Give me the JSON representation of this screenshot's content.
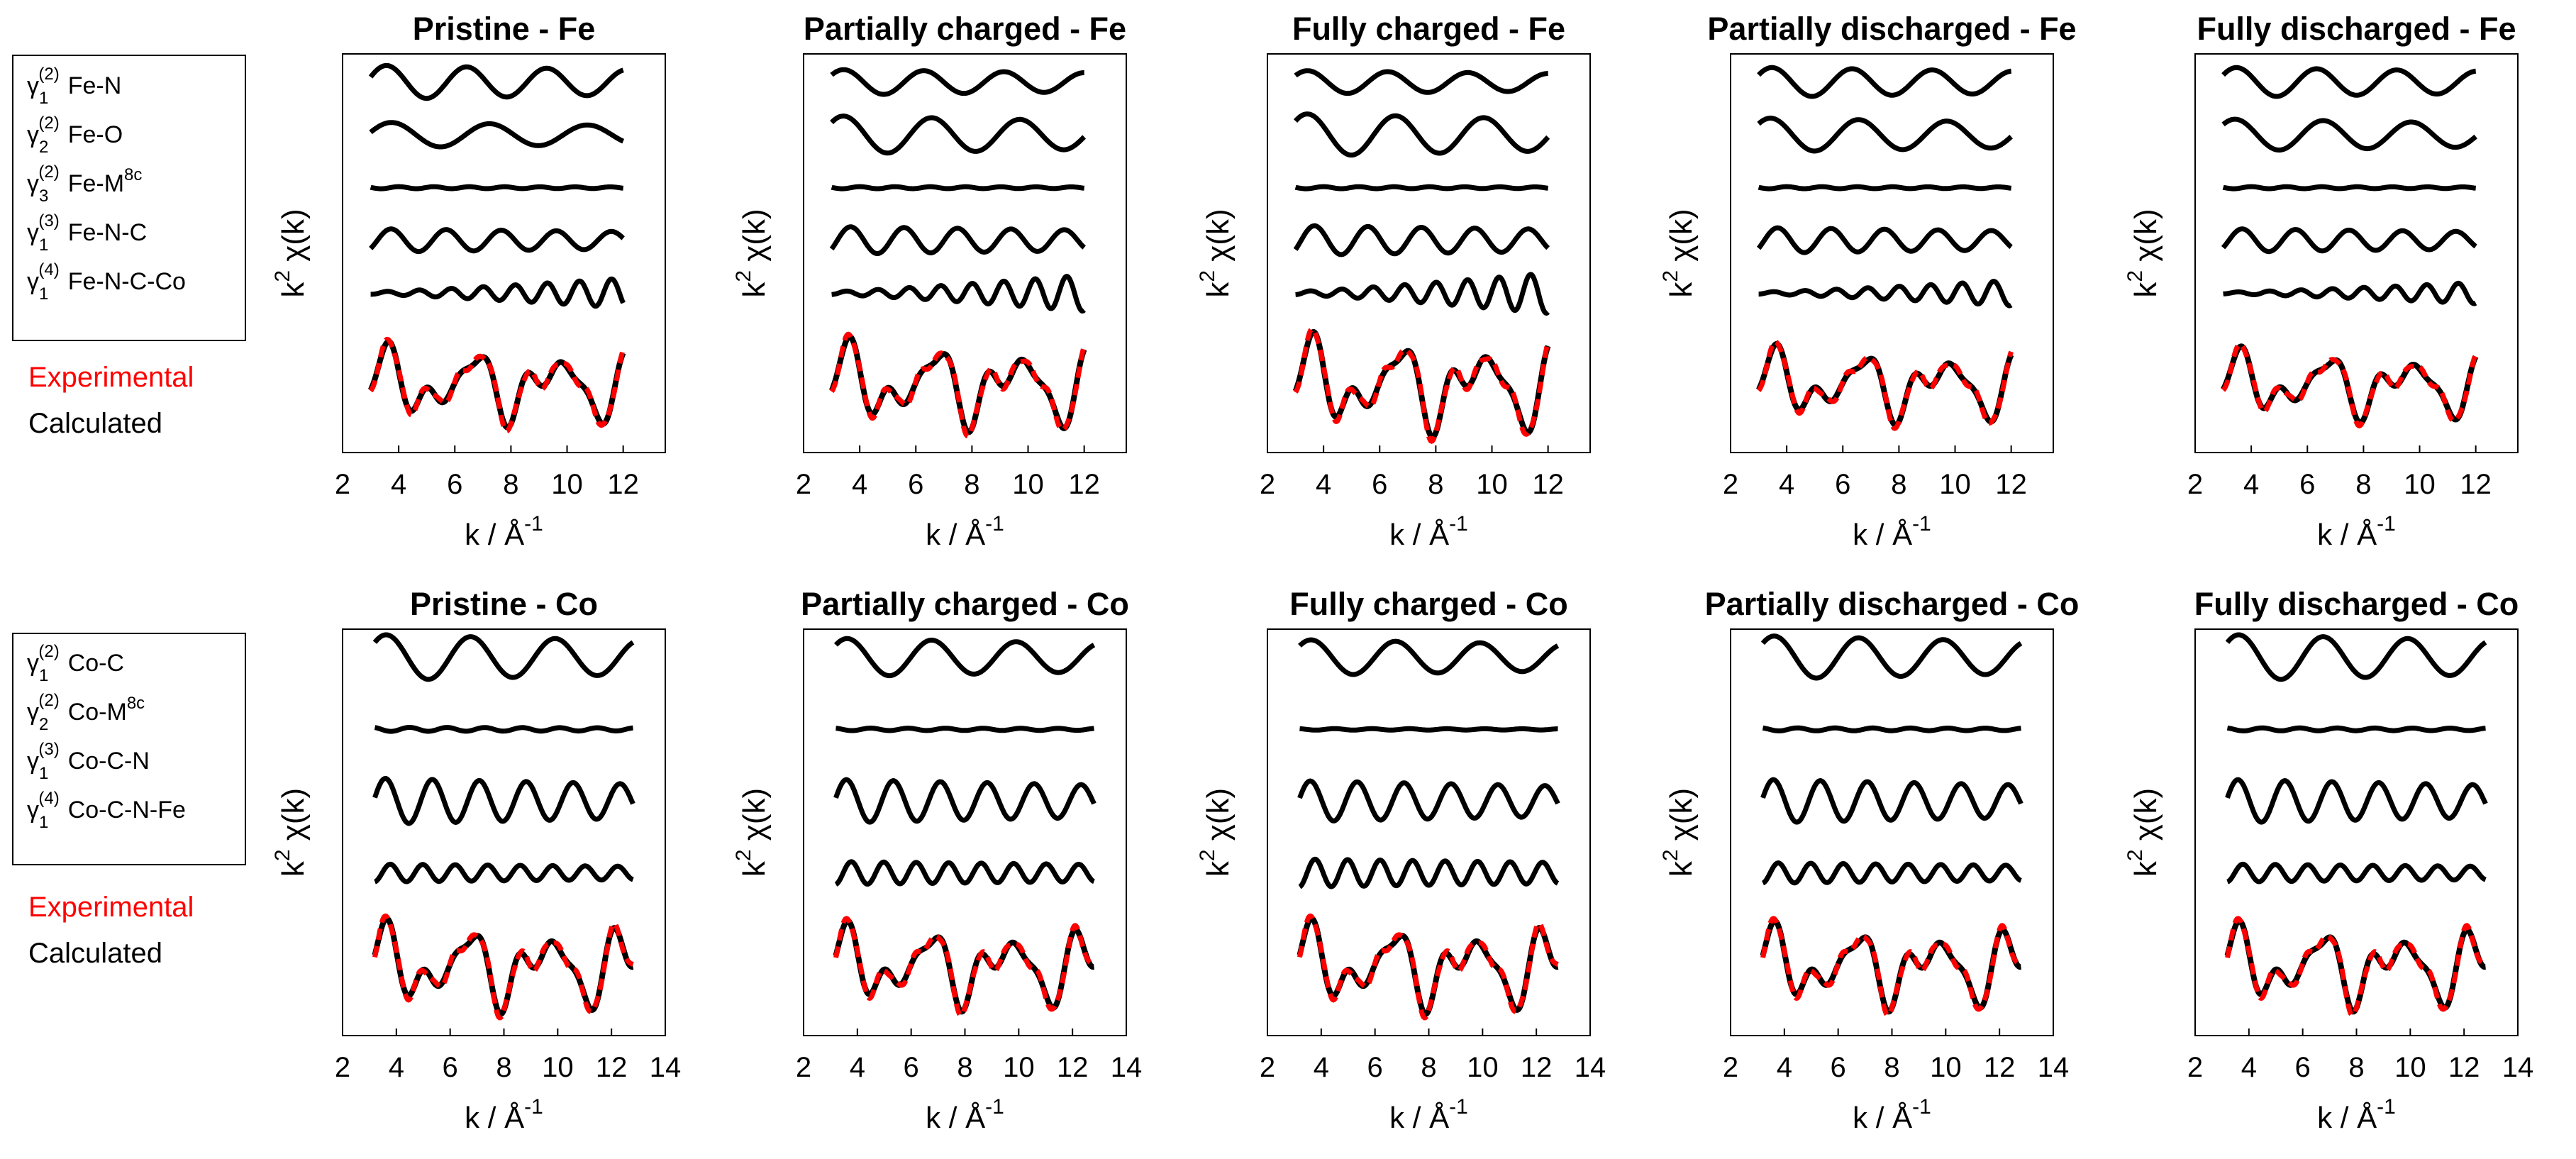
{
  "figure_title": "",
  "chart_data": [
    {
      "type": "line",
      "row": "Fe",
      "title": "Pristine - Fe",
      "xlabel": "k / Å",
      "xlabel_sup": "-1",
      "ylabel": "k",
      "ylabel_sup": "2",
      "ylabel_rest": " χ(k)",
      "xticks": [
        2,
        4,
        6,
        8,
        10,
        12
      ],
      "xlim": [
        2,
        13.5
      ],
      "ylim": [
        -1,
        1
      ],
      "k_range": [
        3,
        12
      ],
      "paths": [
        "Fe-N",
        "Fe-O",
        "Fe-M8c",
        "Fe-N-C",
        "Fe-N-C-Co"
      ],
      "series_names": [
        "Experimental",
        "Calculated"
      ],
      "curve_params": [
        [
          0.8,
          2.2,
          0,
          0
        ],
        [
          0.6,
          1.8,
          1.1,
          0
        ],
        [
          0.05,
          5.0,
          0.4,
          0
        ],
        [
          0.55,
          3.2,
          2.2,
          0
        ],
        [
          0.7,
          5.5,
          0.7,
          1
        ]
      ],
      "fit_amplitude": 0.9
    },
    {
      "type": "line",
      "row": "Fe",
      "title": "Partially charged - Fe",
      "xlabel": "k / Å",
      "xlabel_sup": "-1",
      "ylabel": "k",
      "ylabel_sup": "2",
      "ylabel_rest": " χ(k)",
      "xticks": [
        2,
        4,
        6,
        8,
        10,
        12
      ],
      "xlim": [
        2,
        13.5
      ],
      "ylim": [
        -1,
        1
      ],
      "k_range": [
        3,
        12
      ],
      "paths": [
        "Fe-N",
        "Fe-O",
        "Fe-M8c",
        "Fe-N-C",
        "Fe-N-C-Co"
      ],
      "series_names": [
        "Experimental",
        "Calculated"
      ],
      "curve_params": [
        [
          0.6,
          2.2,
          0.3,
          0
        ],
        [
          0.9,
          2.0,
          1.0,
          0
        ],
        [
          0.05,
          5.0,
          0.4,
          0
        ],
        [
          0.65,
          3.3,
          2.0,
          0
        ],
        [
          0.85,
          5.6,
          0.7,
          1
        ]
      ],
      "fit_amplitude": 1.0
    },
    {
      "type": "line",
      "row": "Fe",
      "title": "Fully charged - Fe",
      "xlabel": "k / Å",
      "xlabel_sup": "-1",
      "ylabel": "k",
      "ylabel_sup": "2",
      "ylabel_rest": " χ(k)",
      "xticks": [
        2,
        4,
        6,
        8,
        10,
        12
      ],
      "xlim": [
        2,
        13.5
      ],
      "ylim": [
        -1,
        1
      ],
      "k_range": [
        3,
        12
      ],
      "paths": [
        "Fe-N",
        "Fe-O",
        "Fe-M8c",
        "Fe-N-C",
        "Fe-N-C-Co"
      ],
      "series_names": [
        "Experimental",
        "Calculated"
      ],
      "curve_params": [
        [
          0.55,
          2.2,
          0.3,
          0
        ],
        [
          1.0,
          2.0,
          1.0,
          0
        ],
        [
          0.05,
          5.0,
          0.4,
          0
        ],
        [
          0.7,
          3.3,
          2.0,
          0
        ],
        [
          0.95,
          5.6,
          0.7,
          1
        ]
      ],
      "fit_amplitude": 1.1
    },
    {
      "type": "line",
      "row": "Fe",
      "title": "Partially discharged - Fe",
      "xlabel": "k / Å",
      "xlabel_sup": "-1",
      "ylabel": "k",
      "ylabel_sup": "2",
      "ylabel_rest": " χ(k)",
      "xticks": [
        2,
        4,
        6,
        8,
        10,
        12
      ],
      "xlim": [
        2,
        13.5
      ],
      "ylim": [
        -1,
        1
      ],
      "k_range": [
        3,
        12
      ],
      "paths": [
        "Fe-N",
        "Fe-O",
        "Fe-M8c",
        "Fe-N-C",
        "Fe-N-C-Co"
      ],
      "series_names": [
        "Experimental",
        "Calculated"
      ],
      "curve_params": [
        [
          0.7,
          2.2,
          0.2,
          0
        ],
        [
          0.8,
          2.0,
          1.0,
          0
        ],
        [
          0.05,
          5.0,
          0.4,
          0
        ],
        [
          0.6,
          3.3,
          2.0,
          0
        ],
        [
          0.6,
          5.6,
          0.7,
          1
        ]
      ],
      "fit_amplitude": 0.85
    },
    {
      "type": "line",
      "row": "Fe",
      "title": "Fully discharged - Fe",
      "xlabel": "k / Å",
      "xlabel_sup": "-1",
      "ylabel": "k",
      "ylabel_sup": "2",
      "ylabel_rest": " χ(k)",
      "xticks": [
        2,
        4,
        6,
        8,
        10,
        12
      ],
      "xlim": [
        2,
        13.5
      ],
      "ylim": [
        -1,
        1
      ],
      "k_range": [
        3,
        12
      ],
      "paths": [
        "Fe-N",
        "Fe-O",
        "Fe-M8c",
        "Fe-N-C",
        "Fe-N-C-Co"
      ],
      "series_names": [
        "Experimental",
        "Calculated"
      ],
      "curve_params": [
        [
          0.7,
          2.2,
          0.2,
          0
        ],
        [
          0.75,
          2.0,
          1.0,
          0
        ],
        [
          0.05,
          5.0,
          0.4,
          0
        ],
        [
          0.55,
          3.3,
          2.0,
          0
        ],
        [
          0.5,
          5.6,
          0.7,
          1
        ]
      ],
      "fit_amplitude": 0.8
    },
    {
      "type": "line",
      "row": "Co",
      "title": "Pristine - Co",
      "xlabel": "k / Å",
      "xlabel_sup": "-1",
      "ylabel": "k",
      "ylabel_sup": "2",
      "ylabel_rest": " χ(k)",
      "xticks": [
        2,
        4,
        6,
        8,
        10,
        12,
        14
      ],
      "xlim": [
        2,
        14
      ],
      "ylim": [
        -1,
        1
      ],
      "k_range": [
        3.2,
        12.8
      ],
      "paths": [
        "Co-C",
        "Co-M8c",
        "Co-C-N",
        "Co-C-N-Fe"
      ],
      "series_names": [
        "Experimental",
        "Calculated"
      ],
      "curve_params": [
        [
          0.9,
          2.0,
          0.6,
          0
        ],
        [
          0.08,
          4.5,
          0.2,
          0
        ],
        [
          0.9,
          3.6,
          1.2,
          0
        ],
        [
          0.35,
          5.2,
          0.8,
          0
        ]
      ],
      "fit_amplitude": 1.0
    },
    {
      "type": "line",
      "row": "Co",
      "title": "Partially charged - Co",
      "xlabel": "k / Å",
      "xlabel_sup": "-1",
      "ylabel": "k",
      "ylabel_sup": "2",
      "ylabel_rest": " χ(k)",
      "xticks": [
        2,
        4,
        6,
        8,
        10,
        12,
        14
      ],
      "xlim": [
        2,
        14
      ],
      "ylim": [
        -1,
        1
      ],
      "k_range": [
        3.2,
        12.8
      ],
      "paths": [
        "Co-C",
        "Co-M8c",
        "Co-C-N",
        "Co-C-N-Fe"
      ],
      "series_names": [
        "Experimental",
        "Calculated"
      ],
      "curve_params": [
        [
          0.75,
          2.0,
          0.6,
          0
        ],
        [
          0.05,
          4.5,
          0.2,
          0
        ],
        [
          0.85,
          3.6,
          1.2,
          0
        ],
        [
          0.45,
          5.2,
          0.8,
          0
        ]
      ],
      "fit_amplitude": 0.95
    },
    {
      "type": "line",
      "row": "Co",
      "title": "Fully charged - Co",
      "xlabel": "k / Å",
      "xlabel_sup": "-1",
      "ylabel": "k",
      "ylabel_sup": "2",
      "ylabel_rest": " χ(k)",
      "xticks": [
        2,
        4,
        6,
        8,
        10,
        12,
        14
      ],
      "xlim": [
        2,
        14
      ],
      "ylim": [
        -1,
        1
      ],
      "k_range": [
        3.2,
        12.8
      ],
      "paths": [
        "Co-C",
        "Co-M8c",
        "Co-C-N",
        "Co-C-N-Fe"
      ],
      "series_names": [
        "Experimental",
        "Calculated"
      ],
      "curve_params": [
        [
          0.7,
          2.0,
          0.6,
          0
        ],
        [
          0.03,
          4.5,
          0.2,
          0
        ],
        [
          0.8,
          3.6,
          1.2,
          0
        ],
        [
          0.55,
          5.2,
          0.8,
          0
        ]
      ],
      "fit_amplitude": 1.0
    },
    {
      "type": "line",
      "row": "Co",
      "title": "Partially discharged - Co",
      "xlabel": "k / Å",
      "xlabel_sup": "-1",
      "ylabel": "k",
      "ylabel_sup": "2",
      "ylabel_rest": " χ(k)",
      "xticks": [
        2,
        4,
        6,
        8,
        10,
        12,
        14
      ],
      "xlim": [
        2,
        14
      ],
      "ylim": [
        -1,
        1
      ],
      "k_range": [
        3.2,
        12.8
      ],
      "paths": [
        "Co-C",
        "Co-M8c",
        "Co-C-N",
        "Co-C-N-Fe"
      ],
      "series_names": [
        "Experimental",
        "Calculated"
      ],
      "curve_params": [
        [
          0.85,
          2.0,
          0.6,
          0
        ],
        [
          0.06,
          4.5,
          0.2,
          0
        ],
        [
          0.85,
          3.6,
          1.2,
          0
        ],
        [
          0.4,
          5.2,
          0.8,
          0
        ]
      ],
      "fit_amplitude": 0.95
    },
    {
      "type": "line",
      "row": "Co",
      "title": "Fully discharged - Co",
      "xlabel": "k / Å",
      "xlabel_sup": "-1",
      "ylabel": "k",
      "ylabel_sup": "2",
      "ylabel_rest": " χ(k)",
      "xticks": [
        2,
        4,
        6,
        8,
        10,
        12,
        14
      ],
      "xlim": [
        2,
        14
      ],
      "ylim": [
        -1,
        1
      ],
      "k_range": [
        3.2,
        12.8
      ],
      "paths": [
        "Co-C",
        "Co-M8c",
        "Co-C-N",
        "Co-C-N-Fe"
      ],
      "series_names": [
        "Experimental",
        "Calculated"
      ],
      "curve_params": [
        [
          0.9,
          2.0,
          0.6,
          0
        ],
        [
          0.06,
          4.5,
          0.2,
          0
        ],
        [
          0.85,
          3.6,
          1.2,
          0
        ],
        [
          0.35,
          5.2,
          0.8,
          0
        ]
      ],
      "fit_amplitude": 0.95
    }
  ],
  "legends": [
    {
      "id": "fe",
      "entries": [
        {
          "sub": "1",
          "sup": "(2)",
          "label": "Fe-N",
          "label_sup": ""
        },
        {
          "sub": "2",
          "sup": "(2)",
          "label": "Fe-O",
          "label_sup": ""
        },
        {
          "sub": "3",
          "sup": "(2)",
          "label": "Fe-M",
          "label_sup": "8c"
        },
        {
          "sub": "1",
          "sup": "(3)",
          "label": "Fe-N-C",
          "label_sup": ""
        },
        {
          "sub": "1",
          "sup": "(4)",
          "label": "Fe-N-C-Co",
          "label_sup": ""
        }
      ],
      "experimental": "Experimental",
      "calculated": "Calculated"
    },
    {
      "id": "co",
      "entries": [
        {
          "sub": "1",
          "sup": "(2)",
          "label": "Co-C",
          "label_sup": ""
        },
        {
          "sub": "2",
          "sup": "(2)",
          "label": "Co-M",
          "label_sup": "8c"
        },
        {
          "sub": "1",
          "sup": "(3)",
          "label": "Co-C-N",
          "label_sup": ""
        },
        {
          "sub": "1",
          "sup": "(4)",
          "label": "Co-C-N-Fe",
          "label_sup": ""
        }
      ],
      "experimental": "Experimental",
      "calculated": "Calculated"
    }
  ],
  "gamma_symbol": "γ",
  "colors": {
    "experimental": "#ff0000",
    "calculated": "#000000",
    "axes": "#000000"
  }
}
